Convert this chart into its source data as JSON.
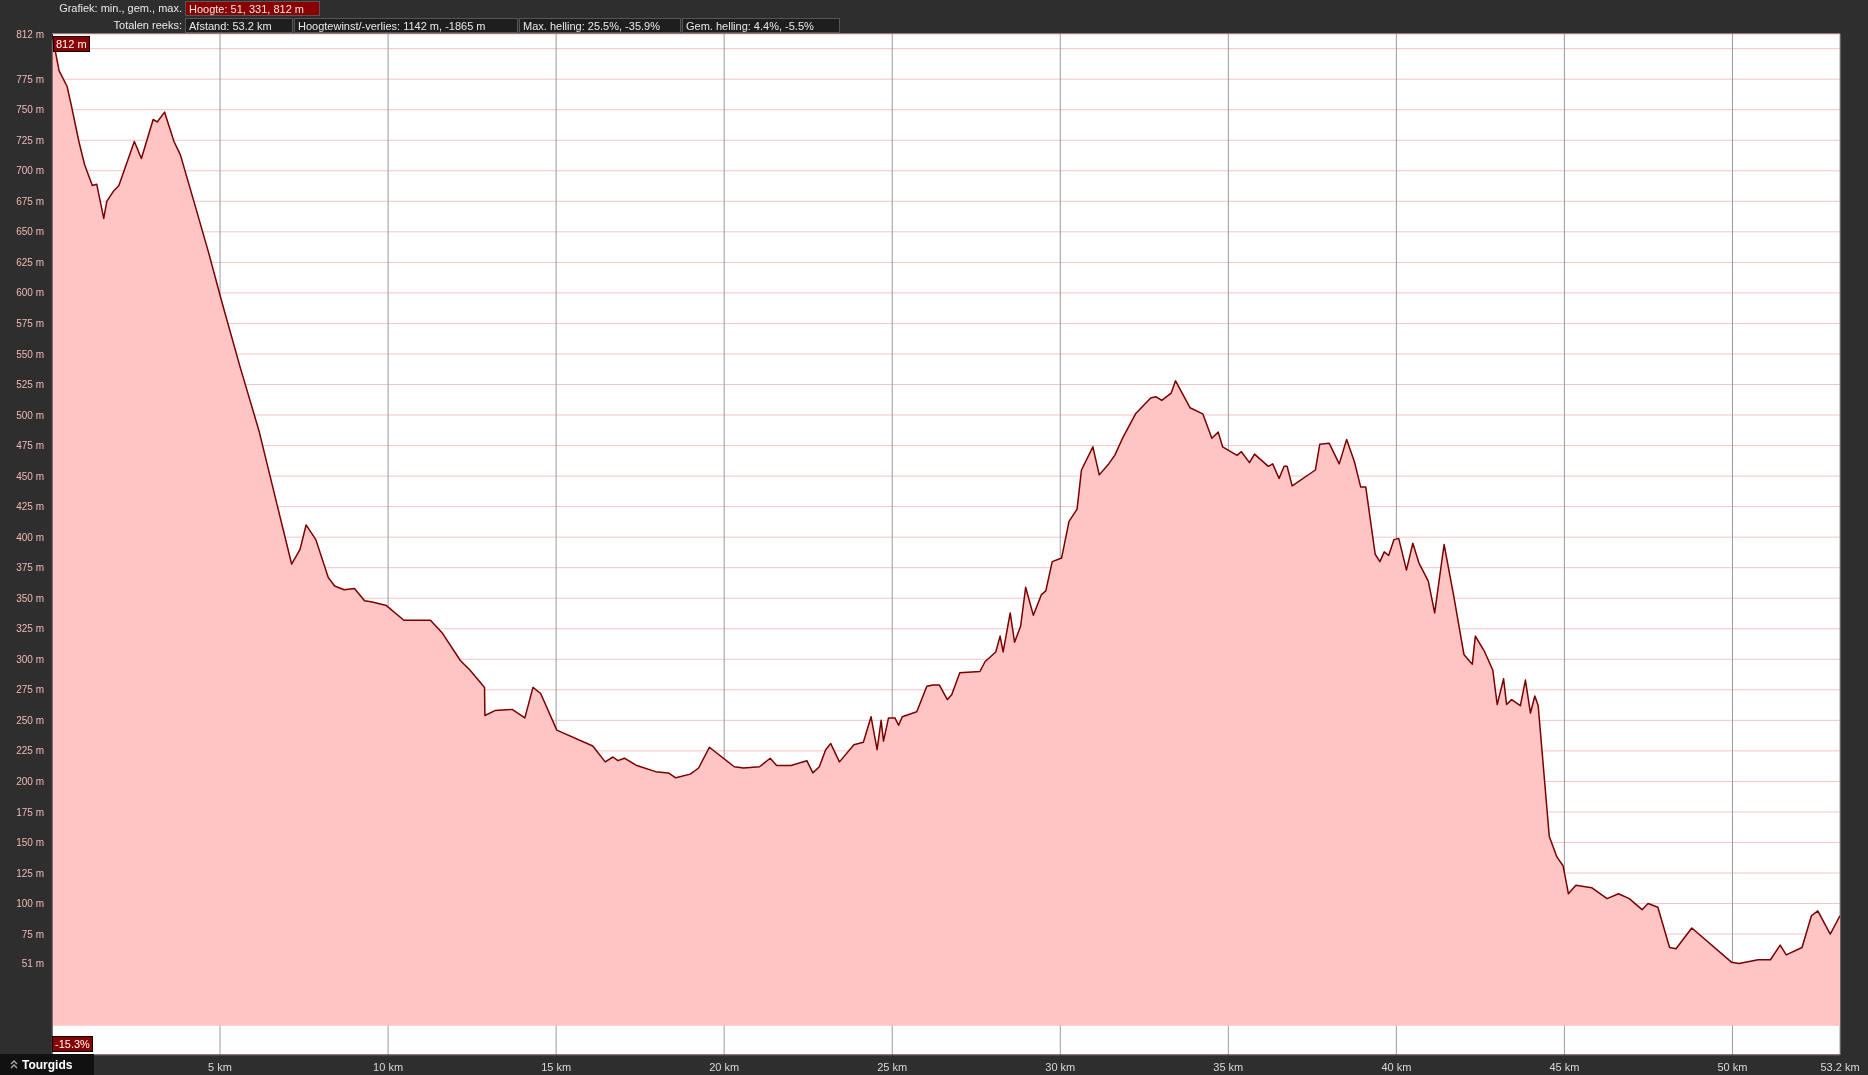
{
  "chart_data": {
    "type": "area",
    "annotations": [
      "Grafiek: min., gem., max.",
      "Hoogte: 51, 331, 812 m",
      "Totalen reeks:",
      "Afstand: 53.2 km",
      "Hoogtewinst/-verlies: 1142 m, -1865 m",
      "Max. helling: 25.5%, -35.9%",
      "Gem. helling: 4.4%, -5.5%",
      {
        "text": "812 m",
        "x": 0,
        "y": 812
      },
      "-15.3%",
      "Tourgids"
    ],
    "x": [
      0,
      0.21,
      0.45,
      0.58,
      0.8,
      0.97,
      1.2,
      1.33,
      1.54,
      1.63,
      1.82,
      1.99,
      2.45,
      2.66,
      3.01,
      3.13,
      3.35,
      3.63,
      3.82,
      4.2,
      4.66,
      5.04,
      5.6,
      6.16,
      6.72,
      7.13,
      7.38,
      7.56,
      7.85,
      8.22,
      8.41,
      8.69,
      9.0,
      9.3,
      9.53,
      9.95,
      10.47,
      11.26,
      11.6,
      12.15,
      12.44,
      12.87,
      12.88,
      13.18,
      13.69,
      14.07,
      14.31,
      14.54,
      15.02,
      16.09,
      16.46,
      16.69,
      16.84,
      17.03,
      17.4,
      17.96,
      18.34,
      18.56,
      18.99,
      19.24,
      19.56,
      20.3,
      20.58,
      21.05,
      21.37,
      21.56,
      21.99,
      22.46,
      22.64,
      22.83,
      23.02,
      23.17,
      23.43,
      23.86,
      24.14,
      24.37,
      24.55,
      24.67,
      24.74,
      24.89,
      25.08,
      25.19,
      25.3,
      25.73,
      26.03,
      26.21,
      26.4,
      26.64,
      26.77,
      27.01,
      27.61,
      27.76,
      28.08,
      28.21,
      28.3,
      28.51,
      28.64,
      28.82,
      28.97,
      29.2,
      29.44,
      29.57,
      29.76,
      30.04,
      30.26,
      30.5,
      30.63,
      30.97,
      31.16,
      31.44,
      31.62,
      31.87,
      32.24,
      32.69,
      32.84,
      33.02,
      33.3,
      33.43,
      33.86,
      34.24,
      34.51,
      34.7,
      34.83,
      35.07,
      35.26,
      35.39,
      35.63,
      35.78,
      36.19,
      36.32,
      36.51,
      36.66,
      36.75,
      36.9,
      37.59,
      37.72,
      38.0,
      38.3,
      38.52,
      38.75,
      38.94,
      39.09,
      39.37,
      39.51,
      39.64,
      39.77,
      39.93,
      40.07,
      40.3,
      40.49,
      40.67,
      40.95,
      41.14,
      41.42,
      41.7,
      42.01,
      42.16,
      42.26,
      42.35,
      42.63,
      42.87,
      43.0,
      43.19,
      43.28,
      43.43,
      43.69,
      43.84,
      43.99,
      44.12,
      44.22,
      44.55,
      44.78,
      44.96,
      45.12,
      45.34,
      45.81,
      46.27,
      46.61,
      46.93,
      47.31,
      47.49,
      47.78,
      48.13,
      48.32,
      48.79,
      49.97,
      50.2,
      50.76,
      51.13,
      51.42,
      51.6,
      52.07,
      52.35,
      52.54,
      52.91,
      53.2
    ],
    "series": [
      {
        "color": "#7a0000",
        "values": [
          812,
          782,
          769,
          753,
          724,
          705,
          688,
          689,
          661,
          675,
          683,
          688,
          724,
          710,
          742,
          740,
          748,
          724,
          713,
          677,
          633,
          594,
          539,
          487,
          424,
          378,
          390,
          410,
          398,
          367,
          360,
          357,
          358,
          348,
          347,
          344,
          332,
          332,
          322,
          299,
          291,
          277,
          254,
          258,
          259,
          252,
          277,
          272,
          242,
          229,
          216,
          220,
          217,
          219,
          213,
          208,
          207,
          203,
          206,
          211,
          228,
          212,
          211,
          212,
          219,
          213,
          213,
          217,
          207,
          212,
          226,
          231,
          216,
          230,
          232,
          253,
          226,
          250,
          233,
          252,
          252,
          246,
          253,
          257,
          278,
          279,
          279,
          267,
          271,
          289,
          290,
          298,
          306,
          319,
          306,
          338,
          314,
          327,
          359,
          336,
          353,
          356,
          380,
          383,
          413,
          423,
          455,
          474,
          451,
          460,
          467,
          482,
          501,
          514,
          515,
          512,
          518,
          528,
          506,
          501,
          481,
          486,
          474,
          470,
          467,
          470,
          461,
          468,
          458,
          460,
          448,
          458,
          458,
          442,
          455,
          476,
          477,
          460,
          480,
          462,
          441,
          441,
          386,
          380,
          388,
          385,
          398,
          399,
          373,
          395,
          379,
          364,
          338,
          394,
          353,
          304,
          299,
          296,
          319,
          306,
          291,
          263,
          284,
          263,
          267,
          262,
          283,
          256,
          270,
          262,
          155,
          138,
          131,
          108,
          115,
          113,
          104,
          108,
          104,
          95,
          100,
          97,
          64,
          63,
          80,
          52,
          51,
          54,
          54,
          66,
          58,
          64,
          90,
          94,
          75,
          90
        ]
      }
    ],
    "xlim": [
      0,
      53.2
    ],
    "xticks": [
      {
        "value": 5,
        "label": "5 km"
      },
      {
        "value": 10,
        "label": "10 km"
      },
      {
        "value": 15,
        "label": "15 km"
      },
      {
        "value": 20,
        "label": "20 km"
      },
      {
        "value": 25,
        "label": "25 km"
      },
      {
        "value": 30,
        "label": "30 km"
      },
      {
        "value": 35,
        "label": "35 km"
      },
      {
        "value": 40,
        "label": "40 km"
      },
      {
        "value": 45,
        "label": "45 km"
      },
      {
        "value": 50,
        "label": "50 km"
      },
      {
        "value": 53.2,
        "label": "53.2 km"
      }
    ],
    "ylim": [
      -24,
      812
    ],
    "yticks": [
      {
        "value": 51,
        "label": "51 m"
      },
      {
        "value": 75,
        "label": "75 m"
      },
      {
        "value": 100,
        "label": "100 m"
      },
      {
        "value": 125,
        "label": "125 m"
      },
      {
        "value": 150,
        "label": "150 m"
      },
      {
        "value": 175,
        "label": "175 m"
      },
      {
        "value": 200,
        "label": "200 m"
      },
      {
        "value": 225,
        "label": "225 m"
      },
      {
        "value": 250,
        "label": "250 m"
      },
      {
        "value": 275,
        "label": "275 m"
      },
      {
        "value": 300,
        "label": "300 m"
      },
      {
        "value": 325,
        "label": "325 m"
      },
      {
        "value": 350,
        "label": "350 m"
      },
      {
        "value": 375,
        "label": "375 m"
      },
      {
        "value": 400,
        "label": "400 m"
      },
      {
        "value": 425,
        "label": "425 m"
      },
      {
        "value": 450,
        "label": "450 m"
      },
      {
        "value": 475,
        "label": "475 m"
      },
      {
        "value": 500,
        "label": "500 m"
      },
      {
        "value": 525,
        "label": "525 m"
      },
      {
        "value": 550,
        "label": "550 m"
      },
      {
        "value": 575,
        "label": "575 m"
      },
      {
        "value": 600,
        "label": "600 m"
      },
      {
        "value": 625,
        "label": "625 m"
      },
      {
        "value": 650,
        "label": "650 m"
      },
      {
        "value": 675,
        "label": "675 m"
      },
      {
        "value": 700,
        "label": "700 m"
      },
      {
        "value": 725,
        "label": "725 m"
      },
      {
        "value": 750,
        "label": "750 m"
      },
      {
        "value": 775,
        "label": "775 m"
      },
      {
        "value": 800,
        "label": null
      },
      {
        "value": 812,
        "label": "812 m"
      }
    ],
    "grid": true,
    "legend": false,
    "marker": "none",
    "line_style": "solid"
  }
}
